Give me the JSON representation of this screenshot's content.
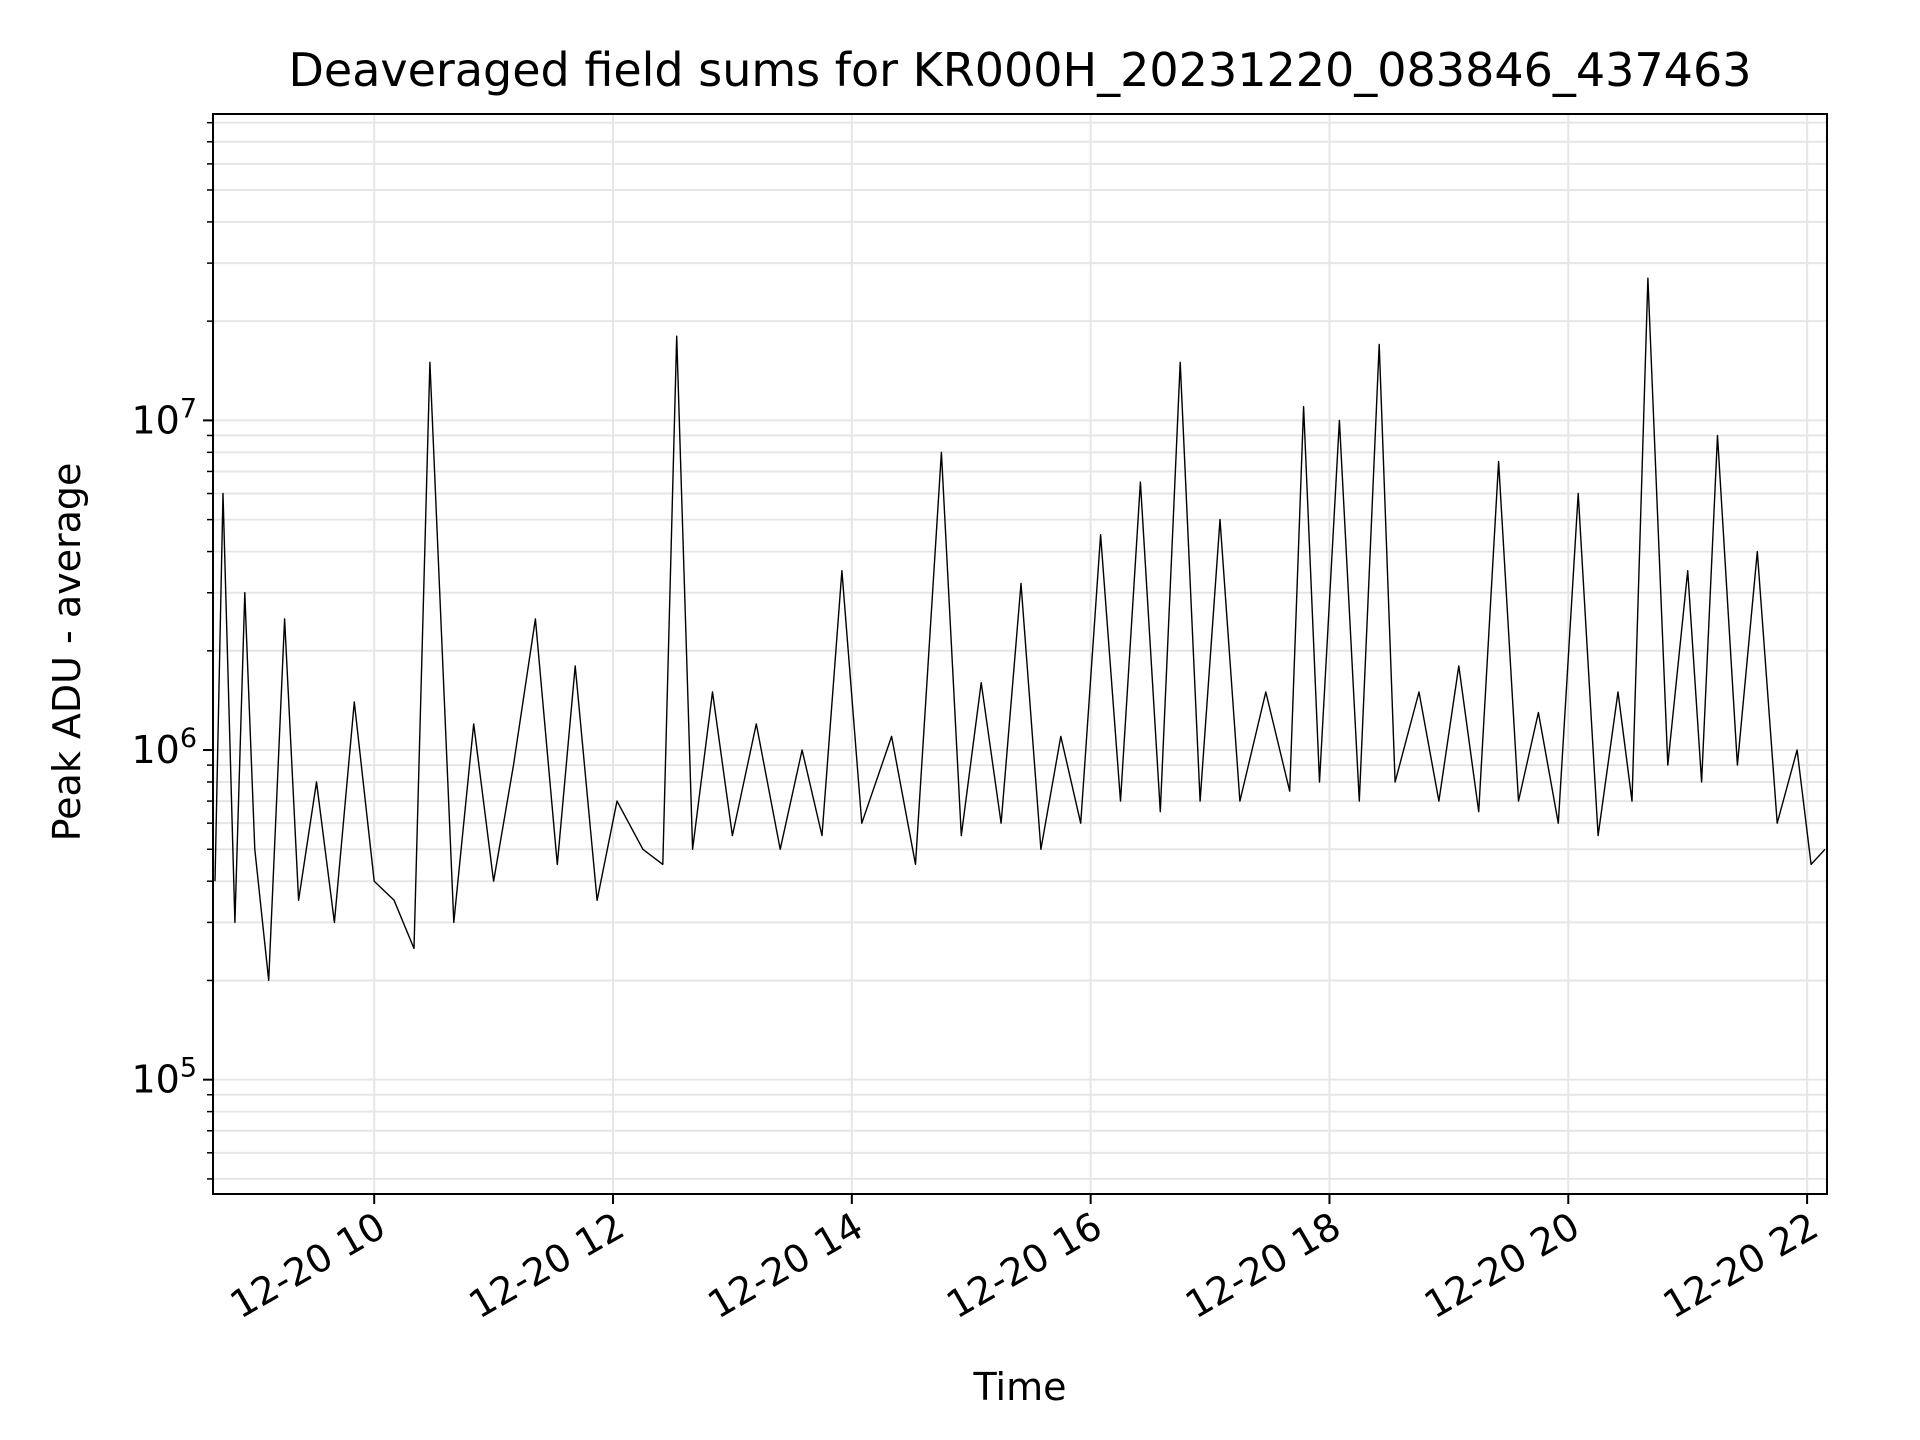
{
  "chart_data": {
    "type": "line",
    "title": "Deaveraged field sums for KR000H_20231220_083846_437463",
    "xlabel": "Time",
    "ylabel": "Peak ADU - average",
    "y_scale": "log",
    "grid": true,
    "legend": "none",
    "line_color": "#000000",
    "grid_color": "#e6e6e6",
    "xlim": [
      "2023-12-20 08:39",
      "2023-12-20 22:10"
    ],
    "ylim": [
      45000,
      85000000
    ],
    "x_ticks": [
      {
        "value": "2023-12-20 10:00",
        "label": "12-20 10"
      },
      {
        "value": "2023-12-20 12:00",
        "label": "12-20 12"
      },
      {
        "value": "2023-12-20 14:00",
        "label": "12-20 14"
      },
      {
        "value": "2023-12-20 16:00",
        "label": "12-20 16"
      },
      {
        "value": "2023-12-20 18:00",
        "label": "12-20 18"
      },
      {
        "value": "2023-12-20 20:00",
        "label": "12-20 20"
      },
      {
        "value": "2023-12-20 22:00",
        "label": "12-20 22"
      }
    ],
    "y_ticks": [
      {
        "value": 100000,
        "base": "10",
        "exp": "5"
      },
      {
        "value": 1000000,
        "base": "10",
        "exp": "6"
      },
      {
        "value": 10000000,
        "base": "10",
        "exp": "7"
      }
    ],
    "series": [
      {
        "x": [
          "2023-12-20 08:40",
          "2023-12-20 08:44",
          "2023-12-20 08:50",
          "2023-12-20 08:55",
          "2023-12-20 09:00",
          "2023-12-20 09:07",
          "2023-12-20 09:15",
          "2023-12-20 09:22",
          "2023-12-20 09:31",
          "2023-12-20 09:40",
          "2023-12-20 09:50",
          "2023-12-20 10:00",
          "2023-12-20 10:10",
          "2023-12-20 10:20",
          "2023-12-20 10:28",
          "2023-12-20 10:40",
          "2023-12-20 10:50",
          "2023-12-20 11:00",
          "2023-12-20 11:10",
          "2023-12-20 11:21",
          "2023-12-20 11:32",
          "2023-12-20 11:41",
          "2023-12-20 11:52",
          "2023-12-20 12:02",
          "2023-12-20 12:15",
          "2023-12-20 12:25",
          "2023-12-20 12:32",
          "2023-12-20 12:40",
          "2023-12-20 12:50",
          "2023-12-20 13:00",
          "2023-12-20 13:12",
          "2023-12-20 13:24",
          "2023-12-20 13:35",
          "2023-12-20 13:45",
          "2023-12-20 13:55",
          "2023-12-20 14:05",
          "2023-12-20 14:20",
          "2023-12-20 14:32",
          "2023-12-20 14:45",
          "2023-12-20 14:55",
          "2023-12-20 15:05",
          "2023-12-20 15:15",
          "2023-12-20 15:25",
          "2023-12-20 15:35",
          "2023-12-20 15:45",
          "2023-12-20 15:55",
          "2023-12-20 16:05",
          "2023-12-20 16:15",
          "2023-12-20 16:25",
          "2023-12-20 16:35",
          "2023-12-20 16:45",
          "2023-12-20 16:55",
          "2023-12-20 17:05",
          "2023-12-20 17:15",
          "2023-12-20 17:28",
          "2023-12-20 17:40",
          "2023-12-20 17:47",
          "2023-12-20 17:55",
          "2023-12-20 18:05",
          "2023-12-20 18:15",
          "2023-12-20 18:25",
          "2023-12-20 18:33",
          "2023-12-20 18:45",
          "2023-12-20 18:55",
          "2023-12-20 19:05",
          "2023-12-20 19:15",
          "2023-12-20 19:25",
          "2023-12-20 19:35",
          "2023-12-20 19:45",
          "2023-12-20 19:55",
          "2023-12-20 20:05",
          "2023-12-20 20:15",
          "2023-12-20 20:25",
          "2023-12-20 20:32",
          "2023-12-20 20:40",
          "2023-12-20 20:50",
          "2023-12-20 21:00",
          "2023-12-20 21:07",
          "2023-12-20 21:15",
          "2023-12-20 21:25",
          "2023-12-20 21:35",
          "2023-12-20 21:45",
          "2023-12-20 21:55",
          "2023-12-20 22:02",
          "2023-12-20 22:09"
        ],
        "y": [
          400000,
          6000000,
          300000,
          3000000,
          500000,
          200000,
          2500000,
          350000,
          800000,
          300000,
          1400000,
          400000,
          350000,
          250000,
          15000000,
          300000,
          1200000,
          400000,
          900000,
          2500000,
          450000,
          1800000,
          350000,
          700000,
          500000,
          450000,
          18000000,
          500000,
          1500000,
          550000,
          1200000,
          500000,
          1000000,
          550000,
          3500000,
          600000,
          1100000,
          450000,
          8000000,
          550000,
          1600000,
          600000,
          3200000,
          500000,
          1100000,
          600000,
          4500000,
          700000,
          6500000,
          650000,
          15000000,
          700000,
          5000000,
          700000,
          1500000,
          750000,
          11000000,
          800000,
          10000000,
          700000,
          17000000,
          800000,
          1500000,
          700000,
          1800000,
          650000,
          7500000,
          700000,
          1300000,
          600000,
          6000000,
          550000,
          1500000,
          700000,
          27000000,
          900000,
          3500000,
          800000,
          9000000,
          900000,
          4000000,
          600000,
          1000000,
          450000,
          500000
        ]
      }
    ]
  }
}
